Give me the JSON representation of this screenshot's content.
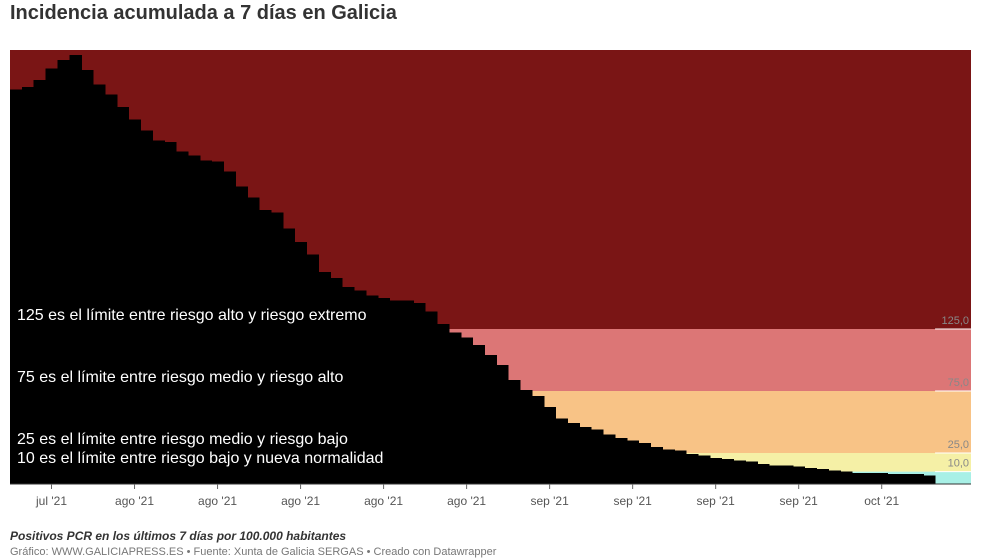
{
  "chart_data": {
    "type": "step-area",
    "title": "Incidencia acumulada a 7 días en Galicia",
    "note": "Positivos PCR en los últimos 7 días por 100.000 habitantes",
    "source": "Gráfico: WWW.GALICIAPRESS.ES • Fuente: Xunta de Galicia SERGAS • Creado con Datawrapper",
    "color": "#000000",
    "categories": [
      null,
      null,
      null,
      "jul '21",
      null,
      null,
      null,
      null,
      null,
      null,
      "ago '21",
      null,
      null,
      null,
      null,
      null,
      null,
      "ago '21",
      null,
      null,
      null,
      null,
      null,
      null,
      "ago '21",
      null,
      null,
      null,
      null,
      null,
      null,
      "ago '21",
      null,
      null,
      null,
      null,
      null,
      null,
      "ago '21",
      null,
      null,
      null,
      null,
      null,
      null,
      "sep '21",
      null,
      null,
      null,
      null,
      null,
      null,
      "sep '21",
      null,
      null,
      null,
      null,
      null,
      null,
      "sep '21",
      null,
      null,
      null,
      null,
      null,
      null,
      "sep '21",
      null,
      null,
      null,
      null,
      null,
      null,
      "oct '21",
      null,
      null,
      null,
      null
    ],
    "values": [
      318,
      320,
      326,
      335,
      342,
      346,
      334,
      322,
      314,
      304,
      294,
      285,
      277,
      276,
      268,
      265,
      261,
      260,
      252,
      240,
      231,
      221,
      219,
      206,
      195,
      185,
      171,
      166,
      159,
      156,
      152,
      150,
      148,
      148,
      146,
      139,
      129,
      122,
      118,
      112,
      104,
      96,
      84,
      76,
      71,
      62,
      53,
      49,
      46,
      44,
      40,
      37,
      35,
      33,
      30,
      28,
      27,
      24,
      23,
      21,
      20,
      19,
      18,
      16,
      15,
      15,
      14,
      13,
      12,
      11,
      10,
      9,
      9,
      9,
      8,
      8,
      8,
      7
    ],
    "ylim": [
      0,
      350
    ],
    "base_color": "#a8f0e6",
    "thresholds": [
      {
        "value": 10,
        "label": "10,0",
        "color": "#f5f0a6",
        "text": "10 es el límite entre riesgo bajo y nueva normalidad"
      },
      {
        "value": 25,
        "label": "25,0",
        "color": "#f8c386",
        "text": "25 es el límite entre riesgo medio y riesgo bajo"
      },
      {
        "value": 75,
        "label": "75,0",
        "color": "#dc7676",
        "text": "75 es el límite entre riesgo medio y riesgo alto"
      },
      {
        "value": 125,
        "label": "125,0",
        "color": "#7a1515",
        "text": "125 es el límite entre riesgo alto y riesgo extremo"
      }
    ]
  }
}
